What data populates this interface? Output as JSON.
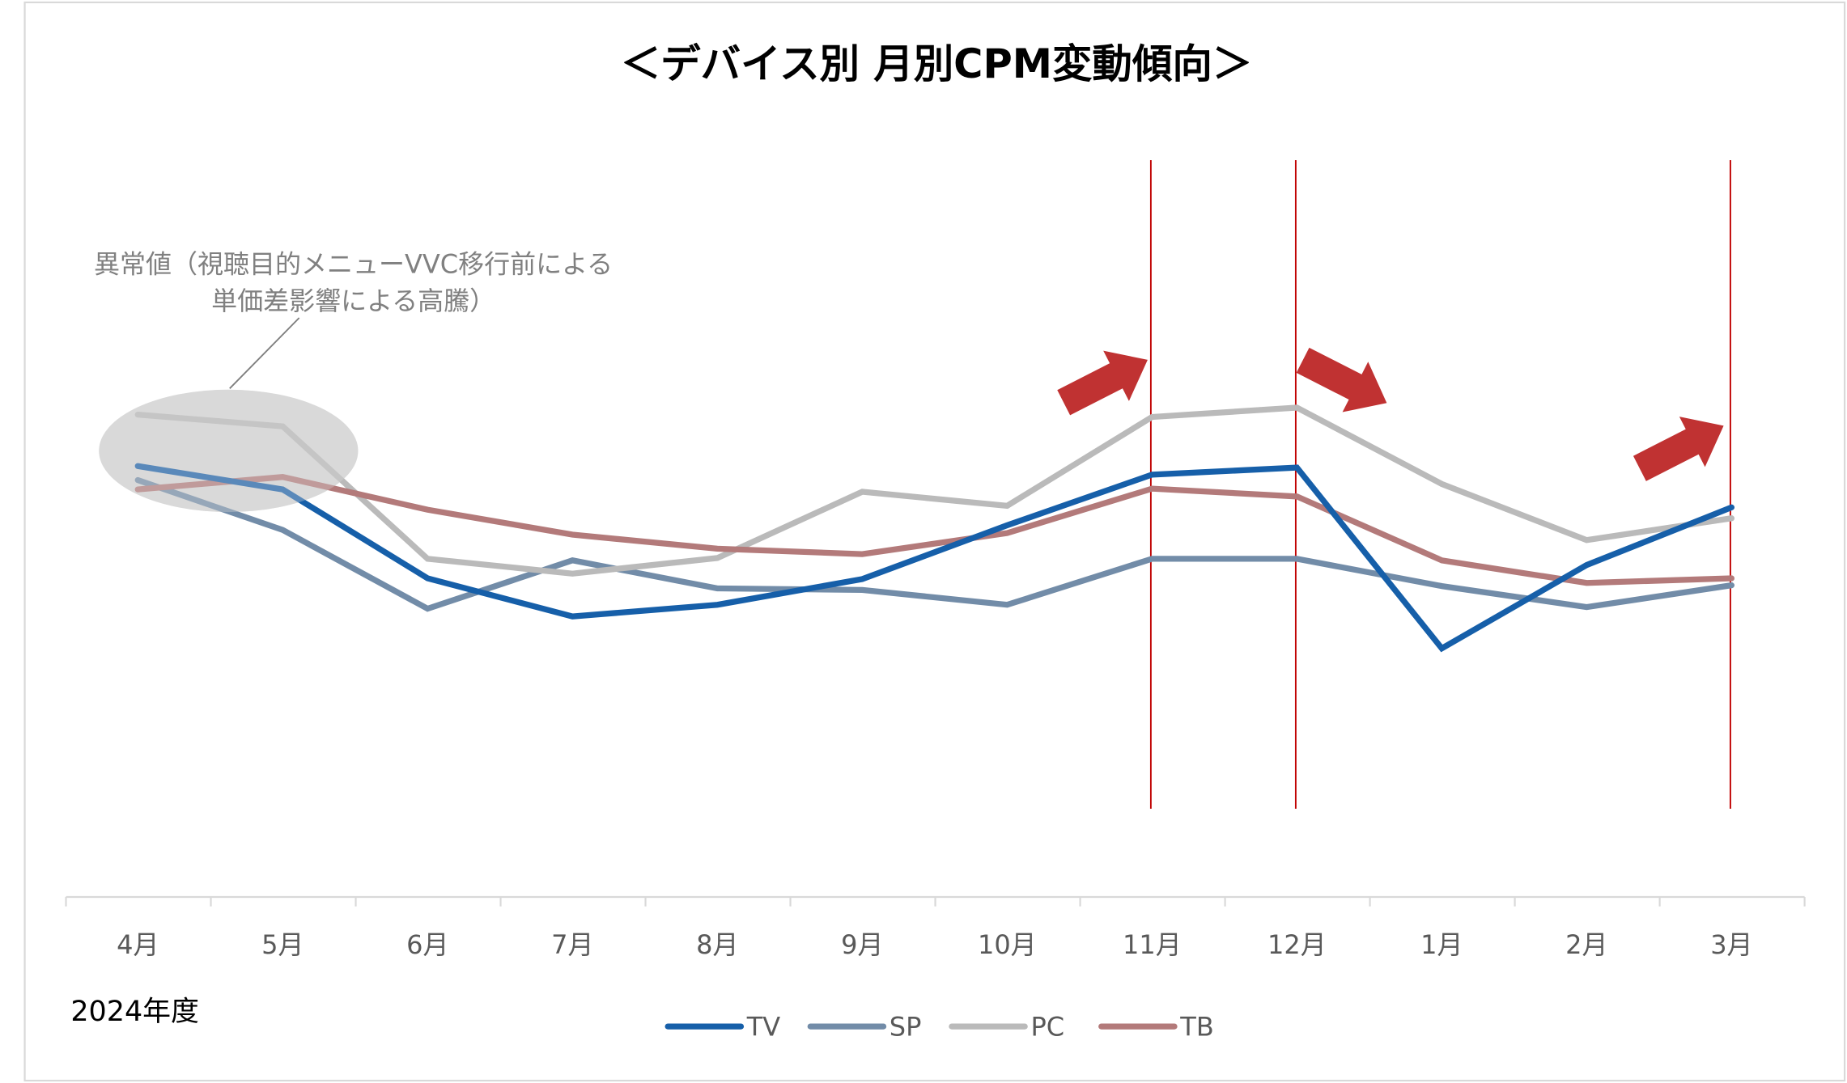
{
  "chart_data": {
    "type": "line",
    "title": "＜デバイス別 月別CPM変動傾向＞",
    "categories": [
      "4月",
      "5月",
      "6月",
      "7月",
      "8月",
      "9月",
      "10月",
      "11月",
      "12月",
      "1月",
      "2月",
      "3月"
    ],
    "xlabel": "2024年度",
    "ylabel": "",
    "y_axis_labels_shown": false,
    "grid": false,
    "legend_position": "bottom",
    "series": [
      {
        "name": "TV",
        "color": "#165fa9",
        "values": [
          55.3,
          52.3,
          40.9,
          36.0,
          37.5,
          40.8,
          47.7,
          54.2,
          55.1,
          31.9,
          42.6,
          50.0
        ]
      },
      {
        "name": "SP",
        "color": "#728ca8",
        "values": [
          53.5,
          47.1,
          37.0,
          43.2,
          39.6,
          39.4,
          37.5,
          43.4,
          43.4,
          39.9,
          37.2,
          40.0
        ]
      },
      {
        "name": "PC",
        "color": "#bababa",
        "values": [
          61.9,
          60.4,
          43.4,
          41.5,
          43.5,
          52.0,
          50.2,
          61.6,
          62.8,
          53.0,
          45.8,
          48.6
        ]
      },
      {
        "name": "TB",
        "color": "#b37a7a",
        "values": [
          52.3,
          53.9,
          49.7,
          46.5,
          44.7,
          44.0,
          46.7,
          52.4,
          51.4,
          43.2,
          40.3,
          40.9
        ]
      }
    ],
    "annotations": {
      "outlier_note": [
        "異常値（視聴目的メニューVVC移行前による",
        "単価差影響による高騰）"
      ],
      "highlighted_months": [
        "11月",
        "12月",
        "3月"
      ],
      "arrow_directions": [
        "up",
        "down",
        "up"
      ],
      "marker_color": "#c00000",
      "arrow_color": "#c03232"
    }
  }
}
